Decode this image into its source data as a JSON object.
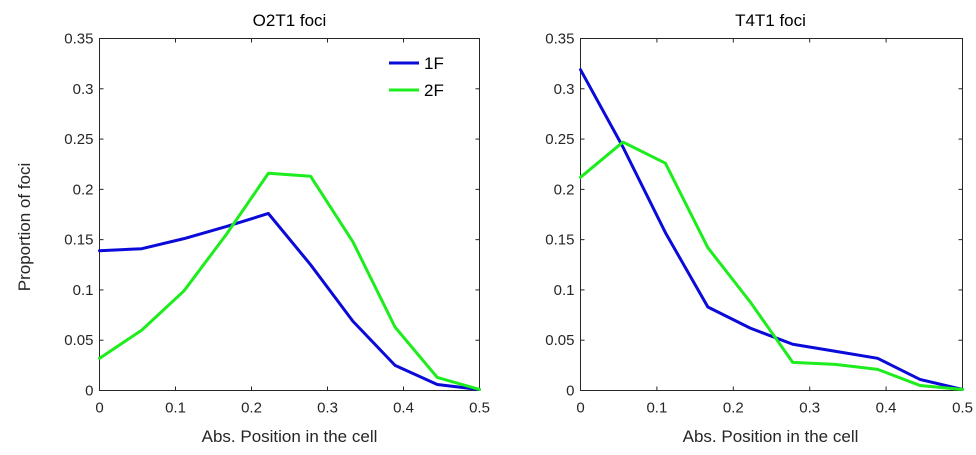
{
  "colors": {
    "series_1F": "#0a0ad9",
    "series_2F": "#1ded1d",
    "axis": "#262626"
  },
  "chart_data": [
    {
      "type": "line",
      "title": "O2T1 foci",
      "xlabel": "Abs. Position in the cell",
      "ylabel": "Proportion of foci",
      "xlim": [
        0,
        0.5
      ],
      "ylim": [
        0,
        0.35
      ],
      "xticks": [
        0,
        0.1,
        0.2,
        0.3,
        0.4,
        0.5
      ],
      "yticks": [
        0,
        0.05,
        0.1,
        0.15,
        0.2,
        0.25,
        0.3,
        0.35
      ],
      "xtick_labels": [
        "0",
        "0.1",
        "0.2",
        "0.3",
        "0.4",
        "0.5"
      ],
      "ytick_labels": [
        "0",
        "0.05",
        "0.1",
        "0.15",
        "0.2",
        "0.25",
        "0.3",
        "0.35"
      ],
      "legend": {
        "position": "top-right",
        "entries": [
          "1F",
          "2F"
        ]
      },
      "x": [
        0,
        0.0556,
        0.1111,
        0.1667,
        0.2222,
        0.2778,
        0.3333,
        0.3889,
        0.4444,
        0.5
      ],
      "series": [
        {
          "name": "1F",
          "color": "#0a0ad9",
          "values": [
            0.139,
            0.141,
            0.151,
            0.163,
            0.176,
            0.125,
            0.069,
            0.025,
            0.006,
            0.001
          ]
        },
        {
          "name": "2F",
          "color": "#1ded1d",
          "values": [
            0.032,
            0.06,
            0.099,
            0.155,
            0.216,
            0.213,
            0.148,
            0.063,
            0.013,
            0.001
          ]
        }
      ]
    },
    {
      "type": "line",
      "title": "T4T1 foci",
      "xlabel": "Abs. Position in the cell",
      "ylabel": "",
      "xlim": [
        0,
        0.5
      ],
      "ylim": [
        0,
        0.35
      ],
      "xticks": [
        0,
        0.1,
        0.2,
        0.3,
        0.4,
        0.5
      ],
      "yticks": [
        0,
        0.05,
        0.1,
        0.15,
        0.2,
        0.25,
        0.3,
        0.35
      ],
      "xtick_labels": [
        "0",
        "0.1",
        "0.2",
        "0.3",
        "0.4",
        "0.5"
      ],
      "ytick_labels": [
        "0",
        "0.05",
        "0.1",
        "0.15",
        "0.2",
        "0.25",
        "0.3",
        "0.35"
      ],
      "x": [
        0,
        0.0556,
        0.1111,
        0.1667,
        0.2222,
        0.2778,
        0.3333,
        0.3889,
        0.4444,
        0.5
      ],
      "series": [
        {
          "name": "1F",
          "color": "#0a0ad9",
          "values": [
            0.319,
            0.242,
            0.157,
            0.083,
            0.062,
            0.046,
            0.039,
            0.032,
            0.011,
            0.001
          ]
        },
        {
          "name": "2F",
          "color": "#1ded1d",
          "values": [
            0.212,
            0.247,
            0.226,
            0.142,
            0.088,
            0.028,
            0.026,
            0.021,
            0.005,
            0.001
          ]
        }
      ]
    }
  ]
}
